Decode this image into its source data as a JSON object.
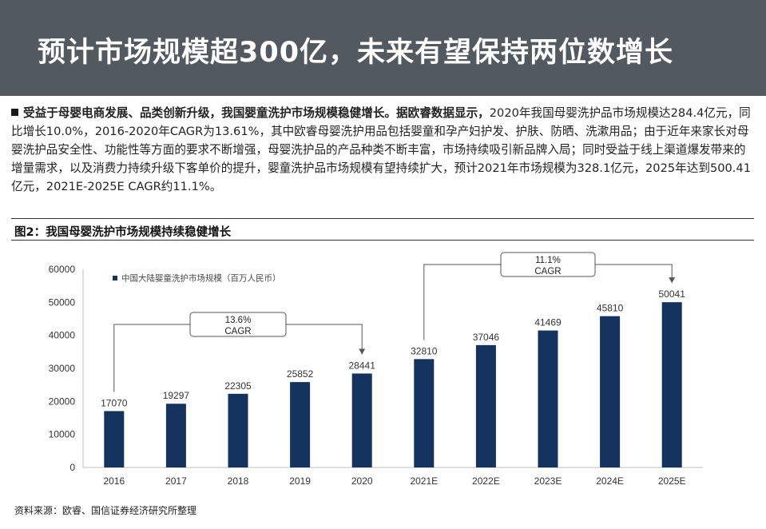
{
  "header": {
    "title": "预计市场规模超300亿，未来有望保持两位数增长"
  },
  "summary": {
    "lead": "受益于母婴电商发展、品类创新升级，我国婴童洗护市场规模稳健增长。据欧睿数据显示，",
    "body": "2020年我国母婴洗护品市场规模达284.4亿元，同比增长10.0%，2016-2020年CAGR为13.61%，其中欧睿母婴洗护用品包括婴童和孕产妇护发、护肤、防晒、洗漱用品；由于近年来家长对母婴洗护品安全性、功能性等方面的要求不断增强，母婴洗护品的产品种类不断丰富，市场持续吸引新品牌入局；同时受益于线上渠道爆发带来的增量需求，以及消费力持续升级下客单价的提升，婴童洗护品市场规模有望持续扩大，预计2021年市场规模为328.1亿元，2025年达到500.41亿元，2021E-2025E CAGR约11.1%。"
  },
  "figure": {
    "title": "图2：我国母婴洗护市场规模持续稳健增长"
  },
  "source": "资料来源：欧睿、国信证券经济研究所整理",
  "chart_data": {
    "type": "bar",
    "categories": [
      "2016",
      "2017",
      "2018",
      "2019",
      "2020",
      "2021E",
      "2022E",
      "2023E",
      "2024E",
      "2025E"
    ],
    "series": [
      {
        "name": "中国大陆婴童洗护市场规模（百万人民币）",
        "values": [
          17070,
          19297,
          22305,
          25852,
          28441,
          32810,
          37046,
          41469,
          45810,
          50041
        ]
      }
    ],
    "yticks": [
      "0",
      "10000",
      "20000",
      "30000",
      "40000",
      "50000",
      "60000"
    ],
    "ylim": [
      0,
      60000
    ],
    "bar_color": "#14335e",
    "legend_position": "top-left",
    "annotations": [
      {
        "text_line1": "13.6%",
        "text_line2": "CAGR",
        "from": "2016",
        "to": "2020"
      },
      {
        "text_line1": "11.1%",
        "text_line2": "CAGR",
        "from": "2021E",
        "to": "2025E"
      }
    ]
  }
}
